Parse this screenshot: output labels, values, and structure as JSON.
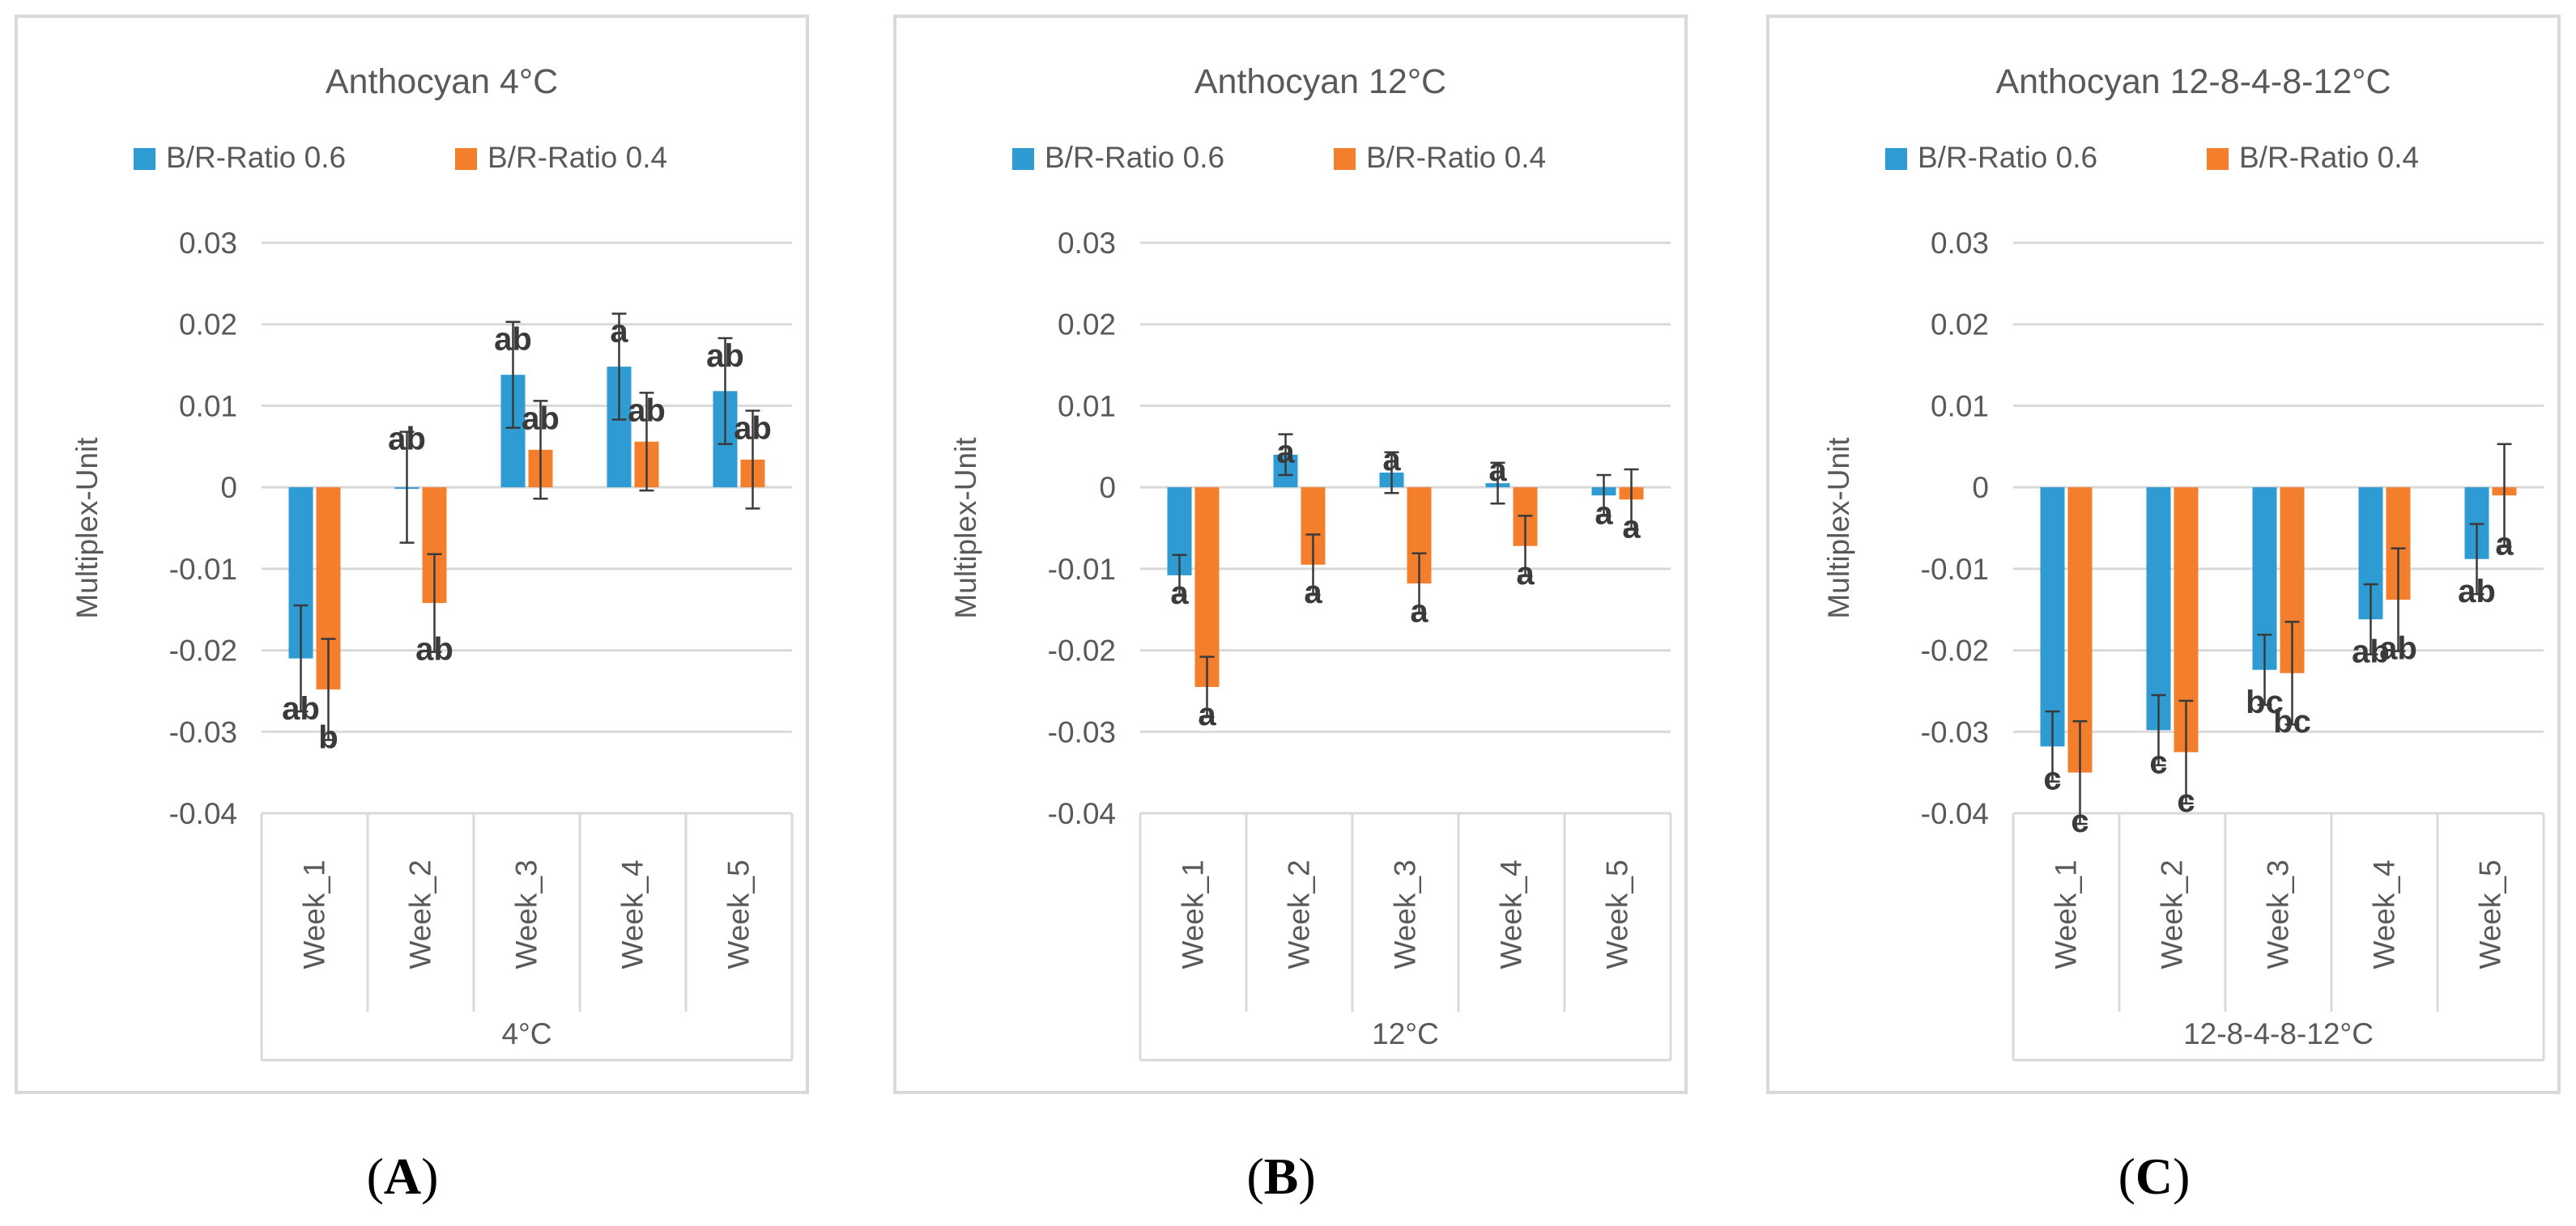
{
  "colors": {
    "series_0_6": "#2E9BD3",
    "series_0_4": "#F37F2D",
    "grid": "#d9d9d9",
    "axis_text": "#595959",
    "title_text": "#595959",
    "sig_text": "#3a3a3a",
    "errorbar": "#3a3a3a",
    "panel_border": "#d9d9d9"
  },
  "chart_data": [
    {
      "type": "bar",
      "panel": "A",
      "panel_label": "A",
      "title": "Anthocyan 4°C",
      "ylabel": "Multiplex-Unit",
      "group_label": "4°C",
      "categories": [
        "Week_1",
        "Week_2",
        "Week_3",
        "Week_4",
        "Week_5"
      ],
      "ylim": [
        -0.04,
        0.03
      ],
      "yticks": [
        "0.03",
        "0.02",
        "0.01",
        "0",
        "-0.01",
        "-0.02",
        "-0.03",
        "-0.04"
      ],
      "ytick_values": [
        0.03,
        0.02,
        0.01,
        0,
        -0.01,
        -0.02,
        -0.03,
        -0.04
      ],
      "legend_position": "top",
      "grid": true,
      "series": [
        {
          "name": "B/R-Ratio 0.6",
          "values": [
            -0.021,
            0.0,
            0.0138,
            0.0148,
            0.0118
          ],
          "errors": [
            0.0065,
            0.0068,
            0.0065,
            0.0065,
            0.0065
          ],
          "sig": [
            "ab",
            "ab",
            "ab",
            "a",
            "ab"
          ]
        },
        {
          "name": "B/R-Ratio 0.4",
          "values": [
            -0.0248,
            -0.0142,
            0.0046,
            0.0056,
            0.0034
          ],
          "errors": [
            0.0062,
            0.006,
            0.006,
            0.006,
            0.006
          ],
          "sig": [
            "b",
            "ab",
            "ab",
            "ab",
            "ab"
          ]
        }
      ]
    },
    {
      "type": "bar",
      "panel": "B",
      "panel_label": "B",
      "title": "Anthocyan 12°C",
      "ylabel": "Multiplex-Unit",
      "group_label": "12°C",
      "categories": [
        "Week_1",
        "Week_2",
        "Week_3",
        "Week_4",
        "Week_5"
      ],
      "ylim": [
        -0.04,
        0.03
      ],
      "yticks": [
        "0.03",
        "0.02",
        "0.01",
        "0",
        "-0.01",
        "-0.02",
        "-0.03",
        "-0.04"
      ],
      "ytick_values": [
        0.03,
        0.02,
        0.01,
        0,
        -0.01,
        -0.02,
        -0.03,
        -0.04
      ],
      "legend_position": "top",
      "grid": true,
      "series": [
        {
          "name": "B/R-Ratio 0.6",
          "values": [
            -0.0108,
            0.004,
            0.0018,
            0.0005,
            -0.001
          ],
          "errors": [
            0.0025,
            0.0025,
            0.0025,
            0.0025,
            0.0025
          ],
          "sig": [
            "a",
            "a",
            "a",
            "a",
            "a"
          ]
        },
        {
          "name": "B/R-Ratio 0.4",
          "values": [
            -0.0245,
            -0.0095,
            -0.0118,
            -0.0072,
            -0.0015
          ],
          "errors": [
            0.0037,
            0.0037,
            0.0037,
            0.0037,
            0.0037
          ],
          "sig": [
            "a",
            "a",
            "a",
            "a",
            "a"
          ]
        }
      ]
    },
    {
      "type": "bar",
      "panel": "C",
      "panel_label": "C",
      "title": "Anthocyan 12-8-4-8-12°C",
      "ylabel": "Multiplex-Unit",
      "group_label": "12-8-4-8-12°C",
      "categories": [
        "Week_1",
        "Week_2",
        "Week_3",
        "Week_4",
        "Week_5"
      ],
      "ylim": [
        -0.04,
        0.03
      ],
      "yticks": [
        "0.03",
        "0.02",
        "0.01",
        "0",
        "-0.01",
        "-0.02",
        "-0.03",
        "-0.04"
      ],
      "ytick_values": [
        0.03,
        0.02,
        0.01,
        0,
        -0.01,
        -0.02,
        -0.03,
        -0.04
      ],
      "legend_position": "top",
      "grid": true,
      "series": [
        {
          "name": "B/R-Ratio 0.6",
          "values": [
            -0.0318,
            -0.0298,
            -0.0224,
            -0.0162,
            -0.0088
          ],
          "errors": [
            0.0043,
            0.0043,
            0.0043,
            0.0043,
            0.0043
          ],
          "sig": [
            "c",
            "c",
            "bc",
            "ab",
            "ab"
          ]
        },
        {
          "name": "B/R-Ratio 0.4",
          "values": [
            -0.035,
            -0.0325,
            -0.0228,
            -0.0138,
            -0.001
          ],
          "errors": [
            0.0063,
            0.0063,
            0.0063,
            0.0063,
            0.0063
          ],
          "sig": [
            "c",
            "c",
            "bc",
            "ab",
            "a"
          ]
        }
      ]
    }
  ]
}
